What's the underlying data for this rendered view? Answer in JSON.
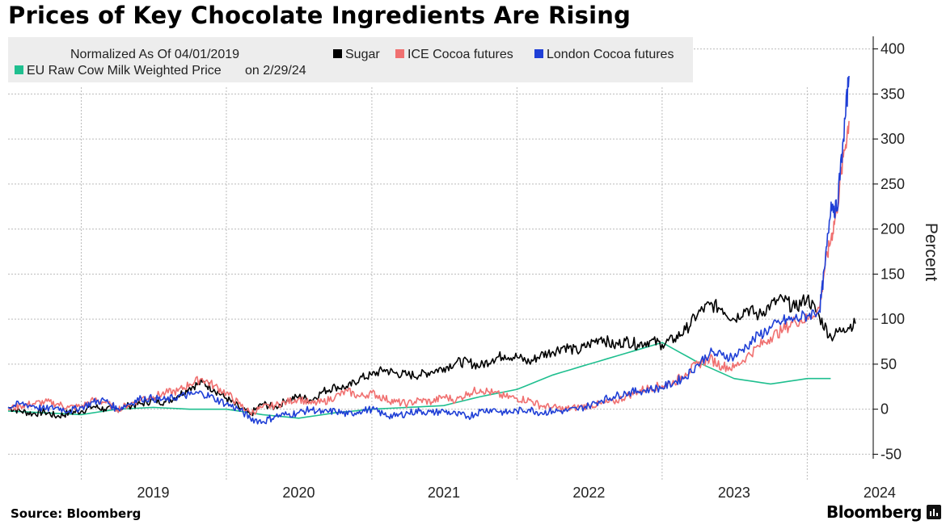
{
  "title": "Prices of Key Chocolate Ingredients Are Rising",
  "source": "Source: Bloomberg",
  "brand": "Bloomberg",
  "colors": {
    "sugar": "#000000",
    "ice_cocoa": "#f07070",
    "london_cocoa": "#1f3fd6",
    "milk": "#1fbf8f",
    "legend_bg": "#ededed",
    "grid": "#bbbbbb"
  },
  "chart_data": {
    "type": "line",
    "ylabel": "Percent",
    "xlabel": "",
    "ylim": [
      -55,
      405
    ],
    "y_ticks": [
      -50,
      0,
      50,
      100,
      150,
      200,
      250,
      300,
      350,
      400
    ],
    "y_tick_labels": [
      "-50",
      "0",
      "50",
      "100",
      "150",
      "200",
      "250",
      "300",
      "350",
      "400"
    ],
    "x_range": [
      "2018-07-01",
      "2024-06-15"
    ],
    "x_ticks": [
      "2019",
      "2020",
      "2021",
      "2022",
      "2023",
      "2024"
    ],
    "grid": true,
    "legend": {
      "placement": "top-left",
      "header": "Normalized As Of 04/01/2019",
      "milk_note": "on 2/29/24"
    },
    "series": [
      {
        "name": "Sugar",
        "color": "#000000",
        "x": [
          "2018-07-01",
          "2018-08-01",
          "2018-09-01",
          "2018-10-01",
          "2018-11-01",
          "2018-12-01",
          "2019-01-01",
          "2019-02-01",
          "2019-03-01",
          "2019-04-01",
          "2019-05-01",
          "2019-06-01",
          "2019-07-01",
          "2019-08-01",
          "2019-09-01",
          "2019-10-01",
          "2019-11-01",
          "2019-12-01",
          "2020-01-01",
          "2020-02-01",
          "2020-03-01",
          "2020-04-01",
          "2020-05-01",
          "2020-06-01",
          "2020-07-01",
          "2020-08-01",
          "2020-09-01",
          "2020-10-01",
          "2020-11-01",
          "2020-12-01",
          "2021-01-01",
          "2021-02-01",
          "2021-03-01",
          "2021-04-01",
          "2021-05-01",
          "2021-06-01",
          "2021-07-01",
          "2021-08-01",
          "2021-09-01",
          "2021-10-01",
          "2021-11-01",
          "2021-12-01",
          "2022-01-01",
          "2022-02-01",
          "2022-03-01",
          "2022-04-01",
          "2022-05-01",
          "2022-06-01",
          "2022-07-01",
          "2022-08-01",
          "2022-09-01",
          "2022-10-01",
          "2022-11-01",
          "2022-12-01",
          "2023-01-01",
          "2023-02-01",
          "2023-03-01",
          "2023-04-01",
          "2023-05-01",
          "2023-06-01",
          "2023-07-01",
          "2023-08-01",
          "2023-09-01",
          "2023-10-01",
          "2023-11-01",
          "2023-12-01",
          "2024-01-01",
          "2024-02-01",
          "2024-03-01",
          "2024-04-01",
          "2024-05-01"
        ],
        "values": [
          2,
          -2,
          -5,
          -3,
          -8,
          -4,
          -2,
          3,
          0,
          0,
          4,
          6,
          10,
          8,
          15,
          24,
          30,
          22,
          12,
          2,
          -6,
          6,
          2,
          10,
          14,
          10,
          20,
          25,
          24,
          34,
          38,
          44,
          40,
          38,
          38,
          42,
          46,
          52,
          52,
          48,
          56,
          60,
          58,
          52,
          60,
          64,
          70,
          64,
          72,
          80,
          70,
          76,
          72,
          76,
          72,
          78,
          88,
          106,
          116,
          112,
          100,
          112,
          104,
          116,
          122,
          112,
          124,
          102,
          80,
          90,
          95
        ]
      },
      {
        "name": "ICE Cocoa futures",
        "color": "#f07070",
        "x": [
          "2018-07-01",
          "2018-08-01",
          "2018-09-01",
          "2018-10-01",
          "2018-11-01",
          "2018-12-01",
          "2019-01-01",
          "2019-02-01",
          "2019-03-01",
          "2019-04-01",
          "2019-05-01",
          "2019-06-01",
          "2019-07-01",
          "2019-08-01",
          "2019-09-01",
          "2019-10-01",
          "2019-11-01",
          "2019-12-01",
          "2020-01-01",
          "2020-02-01",
          "2020-03-01",
          "2020-04-01",
          "2020-05-01",
          "2020-06-01",
          "2020-07-01",
          "2020-08-01",
          "2020-09-01",
          "2020-10-01",
          "2020-11-01",
          "2020-12-01",
          "2021-01-01",
          "2021-02-01",
          "2021-03-01",
          "2021-04-01",
          "2021-05-01",
          "2021-06-01",
          "2021-07-01",
          "2021-08-01",
          "2021-09-01",
          "2021-10-01",
          "2021-11-01",
          "2021-12-01",
          "2022-01-01",
          "2022-02-01",
          "2022-03-01",
          "2022-04-01",
          "2022-05-01",
          "2022-06-01",
          "2022-07-01",
          "2022-08-01",
          "2022-09-01",
          "2022-10-01",
          "2022-11-01",
          "2022-12-01",
          "2023-01-01",
          "2023-02-01",
          "2023-03-01",
          "2023-04-01",
          "2023-05-01",
          "2023-06-01",
          "2023-07-01",
          "2023-08-01",
          "2023-09-01",
          "2023-10-01",
          "2023-11-01",
          "2023-12-01",
          "2024-01-01",
          "2024-02-01",
          "2024-02-15",
          "2024-03-01",
          "2024-03-15",
          "2024-04-01",
          "2024-04-15"
        ],
        "values": [
          0,
          4,
          6,
          8,
          6,
          2,
          3,
          10,
          8,
          0,
          5,
          12,
          14,
          18,
          20,
          28,
          34,
          26,
          18,
          6,
          -4,
          2,
          4,
          8,
          12,
          6,
          8,
          14,
          20,
          14,
          18,
          12,
          8,
          6,
          10,
          8,
          14,
          10,
          18,
          22,
          18,
          14,
          12,
          10,
          4,
          2,
          0,
          2,
          4,
          6,
          8,
          14,
          20,
          24,
          26,
          30,
          40,
          50,
          56,
          48,
          46,
          58,
          70,
          80,
          88,
          98,
          100,
          112,
          160,
          190,
          220,
          280,
          320
        ]
      },
      {
        "name": "London Cocoa futures",
        "color": "#1f3fd6",
        "x": [
          "2018-07-01",
          "2018-08-01",
          "2018-09-01",
          "2018-10-01",
          "2018-11-01",
          "2018-12-01",
          "2019-01-01",
          "2019-02-01",
          "2019-03-01",
          "2019-04-01",
          "2019-05-01",
          "2019-06-01",
          "2019-07-01",
          "2019-08-01",
          "2019-09-01",
          "2019-10-01",
          "2019-11-01",
          "2019-12-01",
          "2020-01-01",
          "2020-02-01",
          "2020-03-01",
          "2020-04-01",
          "2020-05-01",
          "2020-06-01",
          "2020-07-01",
          "2020-08-01",
          "2020-09-01",
          "2020-10-01",
          "2020-11-01",
          "2020-12-01",
          "2021-01-01",
          "2021-02-01",
          "2021-03-01",
          "2021-04-01",
          "2021-05-01",
          "2021-06-01",
          "2021-07-01",
          "2021-08-01",
          "2021-09-01",
          "2021-10-01",
          "2021-11-01",
          "2021-12-01",
          "2022-01-01",
          "2022-02-01",
          "2022-03-01",
          "2022-04-01",
          "2022-05-01",
          "2022-06-01",
          "2022-07-01",
          "2022-08-01",
          "2022-09-01",
          "2022-10-01",
          "2022-11-01",
          "2022-12-01",
          "2023-01-01",
          "2023-02-01",
          "2023-03-01",
          "2023-04-01",
          "2023-05-01",
          "2023-06-01",
          "2023-07-01",
          "2023-08-01",
          "2023-09-01",
          "2023-10-01",
          "2023-11-01",
          "2023-12-01",
          "2024-01-01",
          "2024-02-01",
          "2024-02-15",
          "2024-03-01",
          "2024-03-15",
          "2024-04-01",
          "2024-04-15"
        ],
        "values": [
          2,
          6,
          4,
          0,
          2,
          -2,
          2,
          8,
          10,
          0,
          6,
          12,
          12,
          10,
          14,
          16,
          18,
          12,
          6,
          0,
          -10,
          -14,
          -8,
          -6,
          -4,
          0,
          -4,
          -2,
          -6,
          -2,
          0,
          -6,
          -8,
          -4,
          -2,
          -4,
          -2,
          -6,
          -8,
          -2,
          0,
          -4,
          -2,
          0,
          -4,
          -2,
          -2,
          0,
          4,
          10,
          14,
          18,
          20,
          22,
          24,
          30,
          36,
          50,
          62,
          60,
          58,
          70,
          82,
          90,
          98,
          100,
          104,
          110,
          160,
          230,
          220,
          300,
          370
        ]
      },
      {
        "name": "EU Raw Cow Milk Weighted Price",
        "color": "#1fbf8f",
        "x": [
          "2018-07-01",
          "2018-10-01",
          "2019-01-01",
          "2019-04-01",
          "2019-07-01",
          "2019-10-01",
          "2020-01-01",
          "2020-04-01",
          "2020-07-01",
          "2020-10-01",
          "2021-01-01",
          "2021-04-01",
          "2021-07-01",
          "2021-10-01",
          "2022-01-01",
          "2022-04-01",
          "2022-07-01",
          "2022-10-01",
          "2023-01-01",
          "2023-04-01",
          "2023-07-01",
          "2023-10-01",
          "2024-01-01",
          "2024-02-29"
        ],
        "values": [
          -2,
          -4,
          -6,
          0,
          2,
          0,
          0,
          -6,
          -10,
          -4,
          0,
          2,
          4,
          14,
          22,
          38,
          50,
          62,
          74,
          52,
          34,
          28,
          34,
          34
        ]
      }
    ]
  }
}
